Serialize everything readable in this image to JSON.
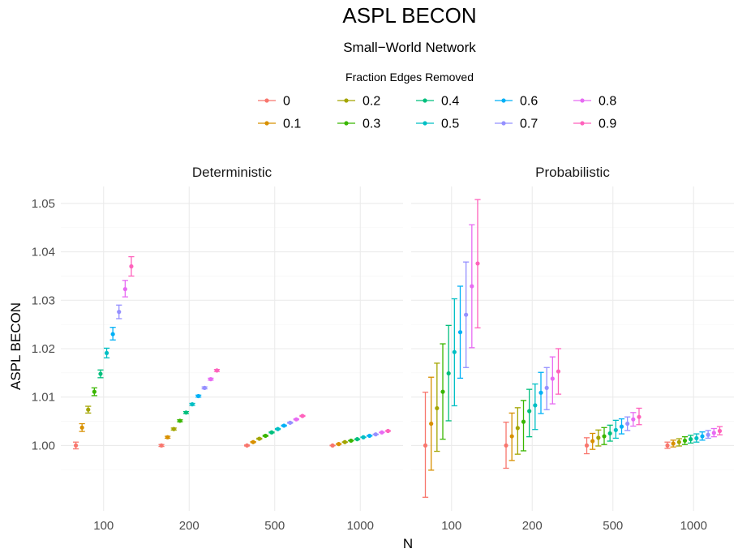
{
  "chart_data": {
    "type": "scatter",
    "title": "ASPL BECON",
    "subtitle": "Small−World Network",
    "xlabel": "N",
    "ylabel": "ASPL BECON",
    "legend": {
      "title": "Fraction Edges Removed",
      "position": "top",
      "entries": [
        "0",
        "0.1",
        "0.2",
        "0.3",
        "0.4",
        "0.5",
        "0.6",
        "0.7",
        "0.8",
        "0.9"
      ]
    },
    "colors": [
      "#F8766D",
      "#D89000",
      "#A3A500",
      "#39B600",
      "#00BF7D",
      "#00BFC4",
      "#00B0F6",
      "#9590FF",
      "#E76BF3",
      "#FF62BC"
    ],
    "categories": [
      "100",
      "200",
      "500",
      "1000"
    ],
    "y_ticks": [
      "1.00",
      "1.01",
      "1.02",
      "1.03",
      "1.04",
      "1.05"
    ],
    "ylim": [
      0.9865,
      1.0535
    ],
    "grid": true,
    "facets": [
      {
        "label": "Deterministic",
        "groups": [
          {
            "N": "100",
            "mean": [
              1.0,
              1.0037,
              1.0074,
              1.0111,
              1.0148,
              1.0191,
              1.023,
              1.0276,
              1.0323,
              1.037
            ],
            "lo": [
              0.9993,
              1.0029,
              1.0067,
              1.0103,
              1.014,
              1.0181,
              1.0218,
              1.0262,
              1.0307,
              1.035
            ],
            "hi": [
              1.0007,
              1.0045,
              1.0081,
              1.0119,
              1.0156,
              1.0201,
              1.0244,
              1.029,
              1.0341,
              1.039
            ]
          },
          {
            "N": "200",
            "mean": [
              1.0,
              1.0017,
              1.0034,
              1.0051,
              1.0068,
              1.0085,
              1.0102,
              1.0119,
              1.0137,
              1.0155
            ],
            "lo": [
              0.9998,
              1.0015,
              1.0032,
              1.0049,
              1.0066,
              1.0083,
              1.01,
              1.0117,
              1.0135,
              1.0153
            ],
            "hi": [
              1.0002,
              1.0019,
              1.0036,
              1.0053,
              1.007,
              1.0087,
              1.0104,
              1.0121,
              1.0139,
              1.0157
            ]
          },
          {
            "N": "500",
            "mean": [
              1.0,
              1.0007,
              1.0014,
              1.002,
              1.0027,
              1.0034,
              1.0041,
              1.0047,
              1.0054,
              1.0061
            ],
            "lo": [
              0.9999,
              1.0006,
              1.0013,
              1.0019,
              1.0026,
              1.0033,
              1.004,
              1.0046,
              1.0053,
              1.006
            ],
            "hi": [
              1.0001,
              1.0008,
              1.0015,
              1.0021,
              1.0028,
              1.0035,
              1.0042,
              1.0048,
              1.0055,
              1.0062
            ]
          },
          {
            "N": "1000",
            "mean": [
              1.0,
              1.0003,
              1.0007,
              1.001,
              1.0013,
              1.0017,
              1.002,
              1.0023,
              1.0027,
              1.003
            ],
            "lo": [
              0.99995,
              1.00025,
              1.00065,
              1.00095,
              1.00125,
              1.00165,
              1.00195,
              1.00225,
              1.00265,
              1.00295
            ],
            "hi": [
              1.00005,
              1.00035,
              1.00075,
              1.00105,
              1.00135,
              1.00175,
              1.00205,
              1.00235,
              1.00275,
              1.00305
            ]
          }
        ]
      },
      {
        "label": "Probabilistic",
        "groups": [
          {
            "N": "100",
            "mean": [
              1.0,
              1.0045,
              1.0077,
              1.0111,
              1.0149,
              1.0193,
              1.0234,
              1.027,
              1.0329,
              1.0376
            ],
            "lo": [
              0.9893,
              0.9949,
              0.9988,
              1.0013,
              1.0051,
              1.0082,
              1.0139,
              1.0161,
              1.0202,
              1.0243
            ],
            "hi": [
              1.011,
              1.0141,
              1.017,
              1.021,
              1.0248,
              1.0303,
              1.0329,
              1.0379,
              1.0456,
              1.0508
            ]
          },
          {
            "N": "200",
            "mean": [
              1.0,
              1.0019,
              1.0036,
              1.0049,
              1.0071,
              1.0083,
              1.0109,
              1.0119,
              1.0138,
              1.0153
            ],
            "lo": [
              0.9953,
              0.9969,
              0.9982,
              0.9989,
              1.0018,
              1.0033,
              1.0066,
              1.0074,
              1.0086,
              1.0106
            ],
            "hi": [
              1.0048,
              1.0067,
              1.0078,
              1.0093,
              1.0116,
              1.0127,
              1.0151,
              1.0161,
              1.0183,
              1.02
            ]
          },
          {
            "N": "500",
            "mean": [
              1.0,
              1.0009,
              1.0016,
              1.0019,
              1.0025,
              1.0032,
              1.0039,
              1.0045,
              1.0054,
              1.0059
            ],
            "lo": [
              0.9983,
              0.9992,
              0.9999,
              1.0002,
              1.0009,
              1.0015,
              1.0024,
              1.0031,
              1.004,
              1.0043
            ],
            "hi": [
              1.0016,
              1.0025,
              1.0032,
              1.0037,
              1.0042,
              1.0052,
              1.0055,
              1.0059,
              1.0068,
              1.0077
            ]
          },
          {
            "N": "1000",
            "mean": [
              1.0,
              1.0004,
              1.0007,
              1.001,
              1.0013,
              1.0015,
              1.0019,
              1.0022,
              1.0026,
              1.003
            ],
            "lo": [
              0.9994,
              0.9997,
              0.9999,
              1.0002,
              1.0005,
              1.0007,
              1.0011,
              1.0015,
              1.0018,
              1.0022
            ],
            "hi": [
              1.0007,
              1.0011,
              1.0014,
              1.0018,
              1.0021,
              1.0024,
              1.0028,
              1.0031,
              1.0035,
              1.0039
            ]
          }
        ]
      }
    ]
  }
}
